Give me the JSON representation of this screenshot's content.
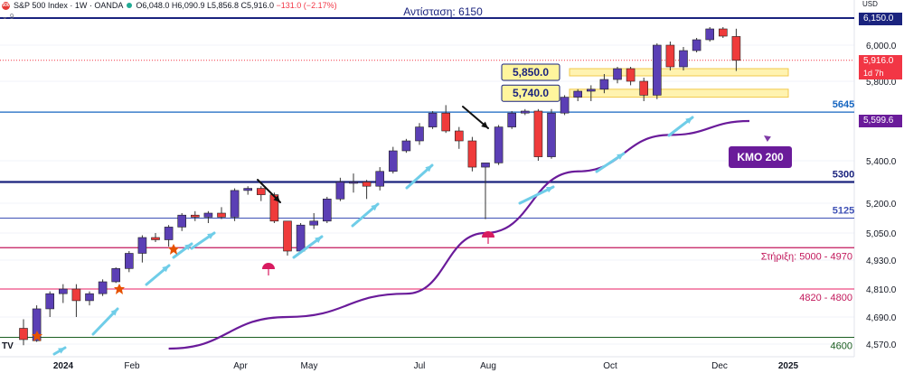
{
  "header": {
    "symbol": "S&P 500 Index · 1W · OANDA",
    "ohlc": "O6,048.0 H6,090.9 L5,856.8 C5,916.0",
    "change": "−131.0 (−2.17%)",
    "collapse": "⌄ 9",
    "logo_text": "500"
  },
  "price_axis": {
    "currency": "USD",
    "ticks": [
      "6,000.0",
      "5,800.0",
      "5,400.0",
      "5,200.0",
      "5,050.0",
      "4,930.0",
      "4,810.0",
      "4,690.0",
      "4,570.0"
    ],
    "resistance_tag": "6,150.0",
    "last_price_tag": "5,916.0",
    "countdown_tag": "1d 7h",
    "ma_tag": "5,599.6"
  },
  "time_axis": {
    "labels": [
      "2024",
      "Feb",
      "Apr",
      "May",
      "Jul",
      "Aug",
      "Oct",
      "Dec",
      "2025"
    ]
  },
  "annotations": {
    "resistance_title": "Αντίσταση: 6150",
    "level_5645": "5645",
    "level_5300": "5300",
    "level_5125": "5125",
    "support_label": "Στήριξη: 5000 - 4970",
    "zone_label": "4820 - 4800",
    "level_4600": "4600",
    "box_5850": "5,850.0",
    "box_5740": "5,740.0",
    "ma_label": "ΚΜΟ 200"
  },
  "colors": {
    "bull": "#5b3fb5",
    "bear": "#ef3b3b",
    "ma": "#6a1b9a",
    "resistance": "#1a237e",
    "support": "#e91e63",
    "arrows": "#6fcde8"
  },
  "chart_data": {
    "type": "candlestick",
    "y_axis": "price (USD)",
    "candles": [
      {
        "o": 4640,
        "h": 4680,
        "l": 4565,
        "c": 4590
      },
      {
        "o": 4585,
        "h": 4740,
        "l": 4580,
        "c": 4725
      },
      {
        "o": 4725,
        "h": 4800,
        "l": 4690,
        "c": 4790
      },
      {
        "o": 4790,
        "h": 4830,
        "l": 4750,
        "c": 4810
      },
      {
        "o": 4810,
        "h": 4830,
        "l": 4690,
        "c": 4760
      },
      {
        "o": 4760,
        "h": 4800,
        "l": 4740,
        "c": 4790
      },
      {
        "o": 4790,
        "h": 4850,
        "l": 4780,
        "c": 4840
      },
      {
        "o": 4840,
        "h": 4900,
        "l": 4835,
        "c": 4895
      },
      {
        "o": 4895,
        "h": 4970,
        "l": 4880,
        "c": 4960
      },
      {
        "o": 4960,
        "h": 5040,
        "l": 4920,
        "c": 5030
      },
      {
        "o": 5030,
        "h": 5050,
        "l": 5010,
        "c": 5020
      },
      {
        "o": 5020,
        "h": 5090,
        "l": 4990,
        "c": 5080
      },
      {
        "o": 5080,
        "h": 5150,
        "l": 5060,
        "c": 5140
      },
      {
        "o": 5140,
        "h": 5160,
        "l": 5110,
        "c": 5130
      },
      {
        "o": 5130,
        "h": 5160,
        "l": 5100,
        "c": 5150
      },
      {
        "o": 5150,
        "h": 5180,
        "l": 5120,
        "c": 5130
      },
      {
        "o": 5130,
        "h": 5270,
        "l": 5110,
        "c": 5260
      },
      {
        "o": 5260,
        "h": 5280,
        "l": 5240,
        "c": 5270
      },
      {
        "o": 5270,
        "h": 5280,
        "l": 5210,
        "c": 5240
      },
      {
        "o": 5240,
        "h": 5250,
        "l": 5100,
        "c": 5110
      },
      {
        "o": 5110,
        "h": 5110,
        "l": 4950,
        "c": 4970
      },
      {
        "o": 4970,
        "h": 5100,
        "l": 4960,
        "c": 5090
      },
      {
        "o": 5090,
        "h": 5150,
        "l": 5070,
        "c": 5110
      },
      {
        "o": 5110,
        "h": 5230,
        "l": 5100,
        "c": 5220
      },
      {
        "o": 5220,
        "h": 5320,
        "l": 5210,
        "c": 5300
      },
      {
        "o": 5300,
        "h": 5340,
        "l": 5250,
        "c": 5300
      },
      {
        "o": 5300,
        "h": 5310,
        "l": 5220,
        "c": 5280
      },
      {
        "o": 5280,
        "h": 5370,
        "l": 5260,
        "c": 5350
      },
      {
        "o": 5350,
        "h": 5470,
        "l": 5340,
        "c": 5450
      },
      {
        "o": 5450,
        "h": 5510,
        "l": 5440,
        "c": 5500
      },
      {
        "o": 5500,
        "h": 5590,
        "l": 5480,
        "c": 5570
      },
      {
        "o": 5570,
        "h": 5650,
        "l": 5560,
        "c": 5640
      },
      {
        "o": 5640,
        "h": 5680,
        "l": 5540,
        "c": 5550
      },
      {
        "o": 5550,
        "h": 5570,
        "l": 5460,
        "c": 5500
      },
      {
        "o": 5500,
        "h": 5520,
        "l": 5350,
        "c": 5370
      },
      {
        "o": 5370,
        "h": 5380,
        "l": 5120,
        "c": 5390
      },
      {
        "o": 5390,
        "h": 5580,
        "l": 5380,
        "c": 5570
      },
      {
        "o": 5570,
        "h": 5650,
        "l": 5560,
        "c": 5640
      },
      {
        "o": 5640,
        "h": 5660,
        "l": 5630,
        "c": 5650
      },
      {
        "o": 5650,
        "h": 5660,
        "l": 5400,
        "c": 5420
      },
      {
        "o": 5420,
        "h": 5660,
        "l": 5410,
        "c": 5640
      },
      {
        "o": 5640,
        "h": 5730,
        "l": 5630,
        "c": 5720
      },
      {
        "o": 5720,
        "h": 5760,
        "l": 5700,
        "c": 5750
      },
      {
        "o": 5750,
        "h": 5780,
        "l": 5700,
        "c": 5760
      },
      {
        "o": 5760,
        "h": 5840,
        "l": 5740,
        "c": 5810
      },
      {
        "o": 5810,
        "h": 5880,
        "l": 5790,
        "c": 5870
      },
      {
        "o": 5870,
        "h": 5880,
        "l": 5780,
        "c": 5800
      },
      {
        "o": 5800,
        "h": 5820,
        "l": 5700,
        "c": 5730
      },
      {
        "o": 5730,
        "h": 6010,
        "l": 5710,
        "c": 6000
      },
      {
        "o": 6000,
        "h": 6020,
        "l": 5860,
        "c": 5880
      },
      {
        "o": 5880,
        "h": 5990,
        "l": 5860,
        "c": 5970
      },
      {
        "o": 5970,
        "h": 6040,
        "l": 5960,
        "c": 6030
      },
      {
        "o": 6030,
        "h": 6100,
        "l": 6020,
        "c": 6090
      },
      {
        "o": 6090,
        "h": 6100,
        "l": 6040,
        "c": 6050
      },
      {
        "o": 6048,
        "h": 6091,
        "l": 5857,
        "c": 5916
      }
    ],
    "moving_average": {
      "name": "ΚΜΟ 200",
      "points": [
        [
          11,
          4550
        ],
        [
          20,
          4690
        ],
        [
          29,
          4790
        ],
        [
          35,
          5050
        ],
        [
          42,
          5350
        ],
        [
          49,
          5530
        ],
        [
          55,
          5600
        ]
      ]
    },
    "horizontal_levels": [
      6150,
      5645,
      5300,
      5125,
      4985,
      4810,
      4600
    ],
    "zones": [
      {
        "low": 5830,
        "high": 5870,
        "label": "5,850.0"
      },
      {
        "low": 5720,
        "high": 5760,
        "label": "5,740.0"
      }
    ]
  }
}
